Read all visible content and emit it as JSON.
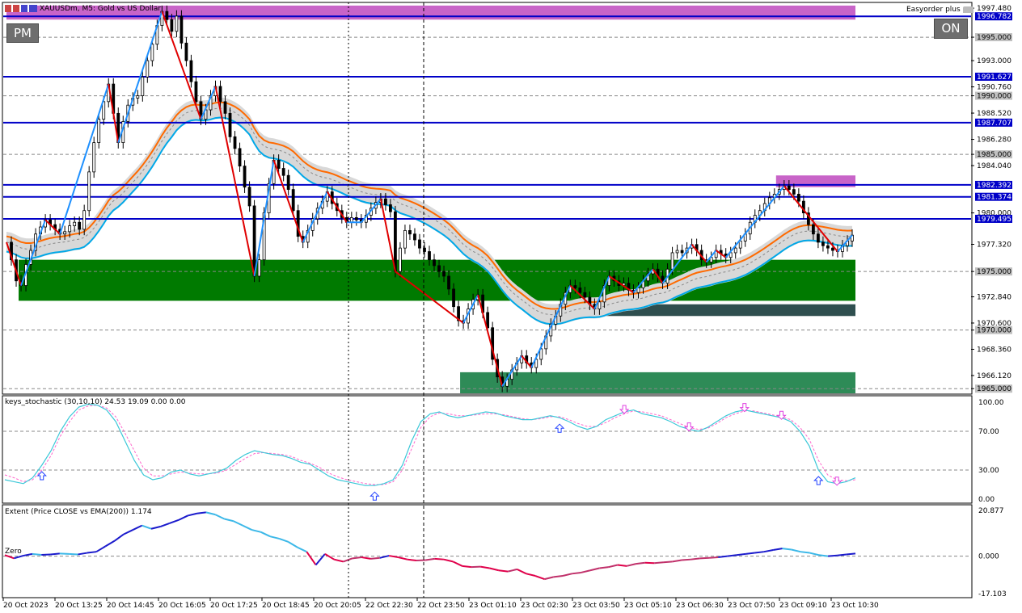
{
  "window": {
    "symbol": "XAUUSDm",
    "timeframe": "M5",
    "description": "Gold vs US Dollar",
    "title_text": "XAUUSDm, M5:  Gold vs US Dollar",
    "easyorder_label": "Easyorder plus"
  },
  "buttons": {
    "pm_label": "PM",
    "on_label": "ON"
  },
  "colors": {
    "bull_candle": "#000000",
    "bear_candle": "#000000",
    "blue_hline": "#0000c8",
    "zigzag_up": "#1e90ff",
    "zigzag_down": "#e00000",
    "demand_zone": "#007a00",
    "demand_zone_light": "#2e8b57",
    "supply_zone": "#c864c8",
    "ema_orange": "#ff6a00",
    "ema_cyan": "#00a8e8",
    "band_grey": "#d8d8d8",
    "stoch_main": "#3cc8d8",
    "stoch_signal": "#ff66cc"
  },
  "price_axis": {
    "ticks": [
      "1997.480",
      "1995.000",
      "1993.000",
      "1990.760",
      "1990.000",
      "1988.520",
      "1986.280",
      "1985.000",
      "1984.040",
      "1980.000",
      "1977.320",
      "1975.000",
      "1972.840",
      "1970.600",
      "1970.000",
      "1968.360",
      "1966.120",
      "1965.000"
    ],
    "highlighted": [
      {
        "label": "1996.782",
        "style": "blue"
      },
      {
        "label": "1991.627",
        "style": "blue"
      },
      {
        "label": "1987.707",
        "style": "blue"
      },
      {
        "label": "1982.392",
        "style": "blue"
      },
      {
        "label": "1981.374",
        "style": "blue"
      },
      {
        "label": "1979.495",
        "style": "blue"
      }
    ],
    "grey_labels": [
      "1995.000",
      "1990.000",
      "1985.000",
      "1975.000",
      "1970.000",
      "1965.000"
    ],
    "min": 1964.6,
    "max": 1997.9
  },
  "time_axis": {
    "labels": [
      "20 Oct 2023",
      "20 Oct 13:25",
      "20 Oct 14:45",
      "20 Oct 16:05",
      "20 Oct 17:25",
      "20 Oct 18:45",
      "20 Oct 20:05",
      "22 Oct 22:30",
      "22 Oct 23:50",
      "23 Oct 01:10",
      "23 Oct 02:30",
      "23 Oct 03:50",
      "23 Oct 05:10",
      "23 Oct 06:30",
      "23 Oct 07:50",
      "23 Oct 09:10",
      "23 Oct 10:30"
    ]
  },
  "hlines": [
    {
      "price": 1996.782,
      "kind": "blue"
    },
    {
      "price": 1991.627,
      "kind": "blue"
    },
    {
      "price": 1987.707,
      "kind": "blue"
    },
    {
      "price": 1982.392,
      "kind": "blue"
    },
    {
      "price": 1981.374,
      "kind": "blue"
    },
    {
      "price": 1979.495,
      "kind": "blue"
    }
  ],
  "zones": [
    {
      "kind": "supply",
      "from_price": 1996.5,
      "to_price": 1997.7,
      "from_bar": 0,
      "to_bar": 210
    },
    {
      "kind": "supply",
      "from_price": 1982.2,
      "to_price": 1983.2,
      "from_bar": 190,
      "to_bar": 210
    },
    {
      "kind": "demand",
      "from_price": 1972.5,
      "to_price": 1976.0,
      "from_bar": 3,
      "to_bar": 210
    },
    {
      "kind": "demand_dark",
      "from_price": 1971.2,
      "to_price": 1972.2,
      "from_bar": 137,
      "to_bar": 210
    },
    {
      "kind": "demand_light",
      "from_price": 1964.6,
      "to_price": 1966.4,
      "from_bar": 112,
      "to_bar": 210
    }
  ],
  "price_series": [
    1977.5,
    1976.0,
    1974.2,
    1973.8,
    1975.6,
    1976.8,
    1978.2,
    1978.8,
    1979.4,
    1979.0,
    1978.6,
    1978.2,
    1978.4,
    1978.9,
    1979.2,
    1978.6,
    1980.2,
    1983.5,
    1986.0,
    1988.0,
    1989.5,
    1991.0,
    1988.5,
    1986.0,
    1987.8,
    1989.2,
    1989.8,
    1990.0,
    1991.6,
    1993.0,
    1994.4,
    1996.0,
    1997.2,
    1996.5,
    1995.5,
    1996.8,
    1994.5,
    1993.0,
    1991.2,
    1989.5,
    1988.0,
    1988.8,
    1990.0,
    1990.8,
    1989.5,
    1988.5,
    1986.5,
    1985.5,
    1984.0,
    1982.2,
    1980.6,
    1974.6,
    1976.0,
    1980.0,
    1982.5,
    1984.5,
    1983.8,
    1983.2,
    1982.0,
    1980.2,
    1978.0,
    1977.5,
    1978.5,
    1979.5,
    1980.4,
    1981.0,
    1981.8,
    1980.8,
    1980.2,
    1979.6,
    1979.2,
    1979.6,
    1979.4,
    1979.2,
    1979.8,
    1980.4,
    1980.9,
    1981.2,
    1980.7,
    1980.1,
    1975.0,
    1977.0,
    1978.5,
    1978.2,
    1977.7,
    1977.0,
    1976.7,
    1976.0,
    1975.5,
    1975.0,
    1974.6,
    1973.5,
    1972.0,
    1970.8,
    1970.6,
    1971.8,
    1972.6,
    1973.0,
    1971.5,
    1970.2,
    1967.5,
    1966.0,
    1965.2,
    1965.8,
    1966.6,
    1967.2,
    1967.8,
    1967.2,
    1966.8,
    1967.5,
    1968.4,
    1969.5,
    1970.5,
    1971.2,
    1972.2,
    1973.2,
    1973.8,
    1973.6,
    1973.2,
    1972.8,
    1972.2,
    1971.8,
    1972.4,
    1973.8,
    1974.6,
    1974.2,
    1973.8,
    1974.0,
    1973.4,
    1973.2,
    1973.6,
    1974.2,
    1974.8,
    1975.2,
    1974.6,
    1974.0,
    1975.2,
    1976.6,
    1976.8,
    1976.6,
    1977.0,
    1977.3,
    1976.8,
    1976.0,
    1975.8,
    1976.2,
    1976.8,
    1976.5,
    1976.2,
    1976.6,
    1977.0,
    1977.6,
    1978.2,
    1979.2,
    1979.8,
    1980.2,
    1980.8,
    1981.3,
    1981.6,
    1982.0,
    1982.3,
    1982.0,
    1981.6,
    1981.0,
    1980.0,
    1979.0,
    1978.2,
    1977.5,
    1977.2,
    1977.0,
    1976.8,
    1976.7,
    1977.2,
    1977.6,
    1978.1
  ],
  "stochastic": {
    "title": "keys_stochastic (30,10,10) 24.53 19.09 0.00 0.00",
    "ticks": [
      "100.00",
      "70.00",
      "30.00",
      "0.00"
    ],
    "main": [
      20,
      18,
      16,
      22,
      35,
      50,
      70,
      85,
      95,
      98,
      97,
      92,
      80,
      60,
      40,
      25,
      20,
      22,
      28,
      30,
      26,
      24,
      26,
      28,
      32,
      40,
      46,
      50,
      48,
      46,
      45,
      42,
      38,
      36,
      30,
      24,
      20,
      18,
      16,
      14,
      14,
      16,
      20,
      35,
      60,
      80,
      88,
      90,
      86,
      84,
      86,
      88,
      90,
      89,
      86,
      84,
      82,
      82,
      84,
      86,
      84,
      80,
      75,
      72,
      75,
      82,
      86,
      90,
      92,
      88,
      86,
      84,
      80,
      75,
      72,
      70,
      74,
      80,
      86,
      90,
      92,
      90,
      88,
      86,
      84,
      80,
      70,
      55,
      30,
      18,
      16,
      18,
      22
    ],
    "signal": [
      25,
      22,
      18,
      20,
      30,
      45,
      65,
      80,
      92,
      96,
      97,
      94,
      85,
      68,
      50,
      32,
      24,
      24,
      26,
      28,
      27,
      26,
      26,
      27,
      30,
      36,
      42,
      47,
      48,
      47,
      46,
      44,
      40,
      37,
      33,
      27,
      23,
      20,
      18,
      16,
      15,
      15,
      18,
      30,
      52,
      74,
      85,
      89,
      88,
      86,
      86,
      87,
      88,
      88,
      87,
      85,
      83,
      82,
      83,
      85,
      85,
      82,
      78,
      75,
      75,
      79,
      84,
      88,
      91,
      90,
      88,
      86,
      82,
      78,
      74,
      72,
      73,
      78,
      84,
      88,
      91,
      91,
      89,
      87,
      85,
      82,
      74,
      62,
      40,
      25,
      20,
      19,
      20
    ],
    "arrows_up_at": [
      4,
      40,
      60,
      88,
      96
    ],
    "arrows_down_at": [
      67,
      74,
      80,
      84,
      90
    ]
  },
  "extent": {
    "title": "Extent (Price CLOSE vs EMA(200)) 1.174",
    "ticks": [
      "20.877",
      "0.000",
      "-17.103"
    ],
    "zero_label": "Zero",
    "max": 20.877,
    "min": -17.103,
    "values": [
      0.5,
      -1.0,
      0.2,
      1.0,
      0.6,
      0.8,
      1.2,
      1.0,
      0.8,
      1.5,
      2.0,
      4.5,
      7.0,
      10.0,
      12.0,
      14.0,
      12.5,
      13.5,
      15.0,
      16.5,
      18.5,
      19.5,
      20.0,
      19.0,
      17.0,
      16.0,
      14.0,
      12.0,
      11.0,
      9.0,
      8.0,
      6.5,
      4.0,
      2.0,
      -4.0,
      1.0,
      -1.5,
      -2.5,
      -1.0,
      -0.5,
      -1.2,
      -0.8,
      0.2,
      -0.5,
      -1.5,
      -2.0,
      -1.8,
      -1.2,
      -1.5,
      -2.5,
      -4.5,
      -5.0,
      -4.8,
      -5.5,
      -6.5,
      -7.0,
      -6.0,
      -8.0,
      -9.0,
      -10.5,
      -9.5,
      -9.0,
      -8.0,
      -7.5,
      -6.5,
      -5.5,
      -5.0,
      -4.0,
      -4.5,
      -3.5,
      -3.0,
      -3.2,
      -2.8,
      -2.5,
      -1.8,
      -1.5,
      -1.0,
      -0.8,
      -0.5,
      0.0,
      0.5,
      1.0,
      1.5,
      2.0,
      2.8,
      3.5,
      3.0,
      2.0,
      1.5,
      0.5,
      0.0,
      0.3,
      0.8,
      1.2
    ]
  }
}
